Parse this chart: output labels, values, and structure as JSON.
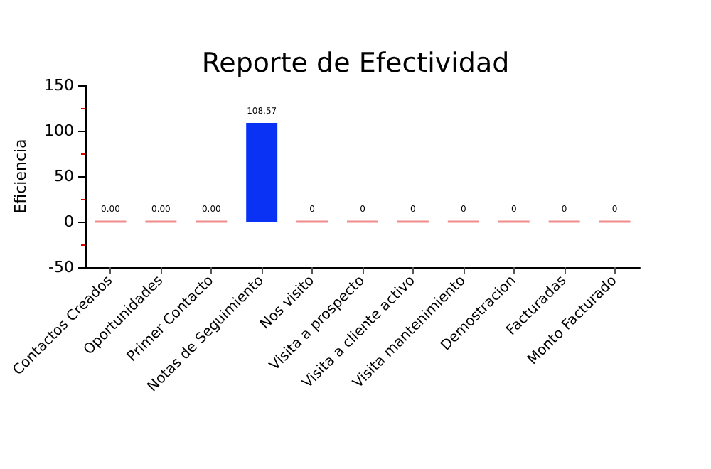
{
  "chart_data": {
    "type": "bar",
    "title": "Reporte de Efectividad",
    "ylabel": "Eficiencia",
    "categories": [
      "Contactos Creados",
      "Oportunidades",
      "Primer Contacto",
      "Notas de Seguimiento",
      "Nos visito",
      "Visita a prospecto",
      "Visita a cliente activo",
      "Visita mantenimiento",
      "Demostracion",
      "Facturadas",
      "Monto Facturado"
    ],
    "values": [
      0,
      0,
      0,
      108.57,
      0,
      0,
      0,
      0,
      0,
      0,
      0
    ],
    "colors": [
      "#f08c8c",
      "#f08c8c",
      "#f08c8c",
      "#0a32f5",
      "#f08c8c",
      "#f08c8c",
      "#f08c8c",
      "#f08c8c",
      "#f08c8c",
      "#f08c8c",
      "#f08c8c"
    ],
    "value_labels": [
      "0.00",
      "0.00",
      "0.00",
      "108.57",
      "0",
      "0",
      "0",
      "0",
      "0",
      "0",
      "0"
    ],
    "ylim": [
      -50,
      150
    ],
    "yticks": [
      -50,
      0,
      50,
      100,
      150
    ],
    "grid": false
  }
}
